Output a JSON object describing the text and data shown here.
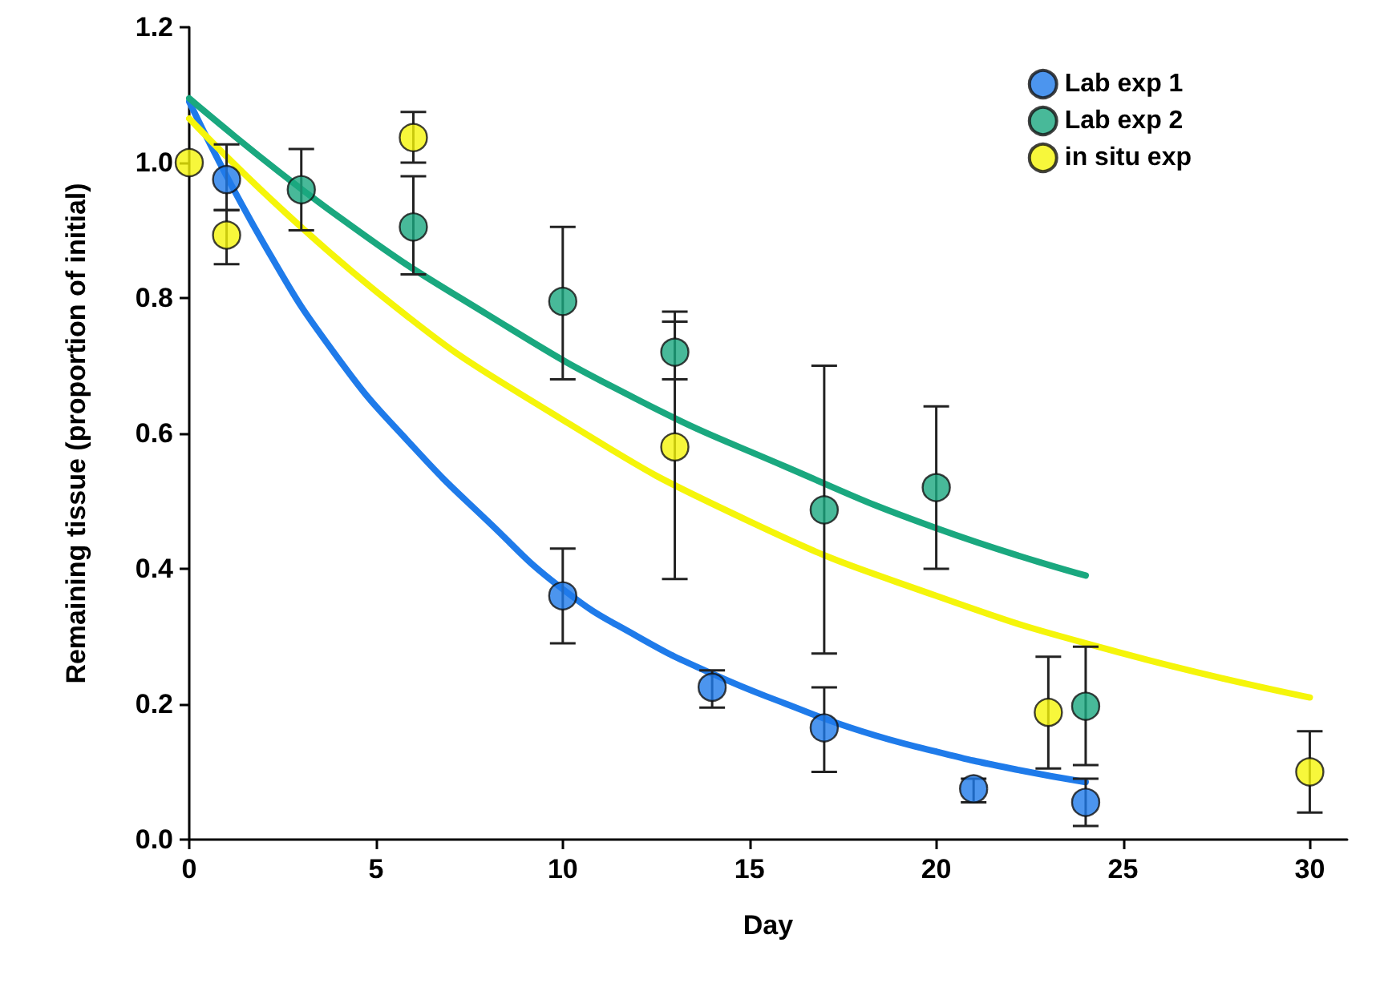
{
  "chart_data": {
    "type": "scatter",
    "xlabel": "Day",
    "ylabel": "Remaining tissue (proportion of initial)",
    "xlim": [
      0,
      31
    ],
    "ylim": [
      0,
      1.2
    ],
    "xticks": [
      0,
      5,
      10,
      15,
      20,
      25,
      30
    ],
    "yticks": [
      {
        "value": 0,
        "label": "0.0"
      },
      {
        "value": 0.2,
        "label": "0.2"
      },
      {
        "value": 0.4,
        "label": "0.4"
      },
      {
        "value": 0.6,
        "label": "0.6"
      },
      {
        "value": 0.8,
        "label": "0.8"
      },
      {
        "value": 1,
        "label": "1.0"
      },
      {
        "value": 1.2,
        "label": "1.2"
      }
    ],
    "grid": false,
    "legend": "top right",
    "line_style": "solid",
    "series": [
      {
        "name": "Lab exp 1",
        "marker": "circle",
        "color": "#1f7bea",
        "x": [
          1,
          10,
          14,
          17,
          21,
          24
        ],
        "values": [
          0.975,
          0.36,
          0.225,
          0.165,
          0.075,
          0.055
        ],
        "errors": [
          [
            0.93,
            1.027
          ],
          [
            0.29,
            0.43
          ],
          [
            0.195,
            0.25
          ],
          [
            0.1,
            0.225
          ],
          [
            0.055,
            0.09
          ],
          [
            0.02,
            0.09
          ]
        ]
      },
      {
        "name": "Lab exp 2",
        "marker": "circle",
        "color": "#1aa87f",
        "x": [
          3,
          6,
          10,
          13,
          17,
          20,
          24
        ],
        "values": [
          0.96,
          0.905,
          0.795,
          0.72,
          0.487,
          0.52,
          0.197
        ],
        "errors": [
          [
            0.9,
            1.02
          ],
          [
            0.835,
            0.98
          ],
          [
            0.68,
            0.905
          ],
          [
            0.68,
            0.78
          ],
          [
            0.275,
            0.7
          ],
          [
            0.4,
            0.64
          ],
          [
            0.11,
            0.285
          ]
        ]
      },
      {
        "name": "in situ exp",
        "marker": "circle",
        "color": "#f5f50a",
        "x": [
          0,
          1,
          6,
          13,
          23,
          30
        ],
        "values": [
          1.0,
          0.893,
          1.037,
          0.58,
          0.188,
          0.1
        ],
        "errors": [
          null,
          [
            0.85,
            0.93
          ],
          [
            1.0,
            1.075
          ],
          [
            0.385,
            0.765
          ],
          [
            0.105,
            0.27
          ],
          [
            0.04,
            0.16
          ]
        ]
      },
      {
        "type": "line",
        "marker": "none",
        "color": "#1f7bea",
        "x": [
          0,
          2,
          4,
          6,
          8,
          10,
          12,
          14,
          16,
          18,
          20,
          22,
          24
        ],
        "values": [
          1.09,
          0.88,
          0.71,
          0.58,
          0.47,
          0.37,
          0.3,
          0.245,
          0.2,
          0.16,
          0.13,
          0.105,
          0.085
        ]
      },
      {
        "type": "line",
        "marker": "none",
        "color": "#1aa87f",
        "x": [
          0,
          4,
          8,
          12,
          16,
          20,
          24
        ],
        "values": [
          1.095,
          0.92,
          0.775,
          0.65,
          0.55,
          0.46,
          0.39
        ]
      },
      {
        "type": "line",
        "marker": "none",
        "color": "#f5f50a",
        "x": [
          0,
          5,
          10,
          15,
          20,
          25,
          30
        ],
        "values": [
          1.065,
          0.81,
          0.62,
          0.47,
          0.36,
          0.275,
          0.21
        ]
      }
    ]
  }
}
